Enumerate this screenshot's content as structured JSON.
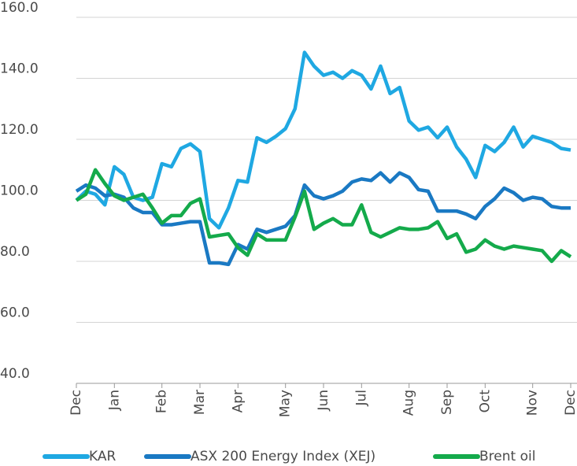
{
  "chart_data": {
    "type": "line",
    "categories": [
      "Dec",
      null,
      null,
      null,
      "Jan",
      null,
      null,
      null,
      null,
      "Feb",
      null,
      null,
      null,
      "Mar",
      null,
      null,
      null,
      "Apr",
      null,
      null,
      null,
      null,
      "May",
      null,
      null,
      null,
      "Jun",
      null,
      null,
      null,
      "Jul",
      null,
      null,
      null,
      null,
      "Aug",
      null,
      null,
      null,
      "Sep",
      null,
      null,
      null,
      "Oct",
      null,
      null,
      null,
      null,
      "Nov",
      null,
      null,
      null,
      "Dec"
    ],
    "series": [
      {
        "name": "KAR",
        "color": "#1fa8e2",
        "values": [
          100,
          103,
          102,
          98.5,
          111,
          108.5,
          101,
          100,
          101,
          112,
          111,
          117,
          118.5,
          116,
          94,
          91,
          97.5,
          106.5,
          106,
          120.5,
          119,
          121,
          123.5,
          130,
          148.5,
          144,
          141,
          142,
          140,
          142.5,
          141,
          136.5,
          144,
          135,
          137,
          126,
          123,
          124,
          120.5,
          124,
          117.5,
          113.5,
          107.5,
          118,
          116,
          119,
          124,
          117.5,
          121,
          120,
          119,
          117,
          116.5
        ]
      },
      {
        "name": "ASX 200 Energy Index (XEJ)",
        "color": "#1a79c3",
        "values": [
          103,
          105,
          104,
          101.5,
          102,
          101,
          97.5,
          96,
          96,
          92,
          92,
          92.5,
          93,
          93,
          79.5,
          79.5,
          79,
          85.5,
          84,
          90.5,
          89.5,
          90.5,
          91.5,
          95,
          105,
          101.5,
          100.5,
          101.5,
          103,
          106,
          107,
          106.5,
          109,
          106,
          109,
          107.5,
          103.5,
          103,
          96.5,
          96.5,
          96.5,
          95.5,
          94,
          98,
          100.5,
          104,
          102.5,
          100,
          101,
          100.5,
          98,
          97.5,
          97.5
        ]
      },
      {
        "name": "Brent oil",
        "color": "#14aa4b",
        "values": [
          100,
          102,
          110,
          105.5,
          101.5,
          100,
          101,
          102,
          97.5,
          92.5,
          95,
          95,
          99,
          100.5,
          88,
          88.5,
          89,
          84.5,
          82,
          89,
          87,
          87,
          87,
          94.5,
          103,
          90.5,
          92.5,
          94,
          92,
          92,
          98.5,
          89.5,
          88,
          89.5,
          91,
          90.5,
          90.5,
          91,
          93,
          87.5,
          89,
          83,
          84,
          87,
          85,
          84,
          85,
          84.5,
          84,
          83.5,
          80,
          83.5,
          81.5
        ]
      }
    ],
    "ylim": [
      40,
      160
    ],
    "yticks": [
      {
        "value": 40,
        "label": "40.0"
      },
      {
        "value": 60,
        "label": "60.0"
      },
      {
        "value": 80,
        "label": "80.0"
      },
      {
        "value": 100,
        "label": "100.0"
      },
      {
        "value": 120,
        "label": "120.0"
      },
      {
        "value": 140,
        "label": "140.0"
      },
      {
        "value": 160,
        "label": "160.0"
      }
    ],
    "grid": true,
    "legend": "bottom"
  }
}
